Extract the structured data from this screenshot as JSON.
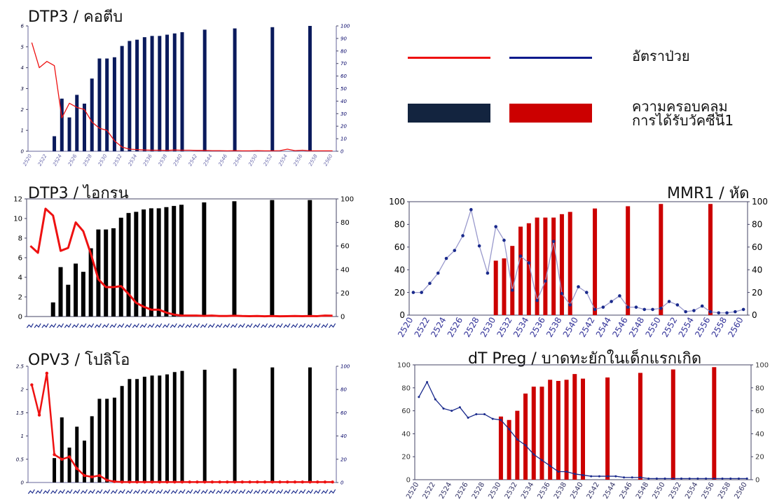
{
  "legend": {
    "incidence_label": "อัตราป่วย",
    "coverage_label_1": "ความครอบคลุม",
    "coverage_label_2": "การได้รับวัคซีนี1",
    "colors": {
      "red_line": "#ee1111",
      "blue_line": "#0a1a8c",
      "navy_bar": "#13243f",
      "red_bar": "#cc0000"
    }
  },
  "chart_data": [
    {
      "id": "dtp3-diphtheria",
      "type": "bar",
      "title": "DTP3 / คอตีบ",
      "x": [
        "2520",
        "2521",
        "2522",
        "2523",
        "2524",
        "2525",
        "2526",
        "2527",
        "2528",
        "2529",
        "2530",
        "2531",
        "2532",
        "2533",
        "2534",
        "2535",
        "2536",
        "2537",
        "2538",
        "2539",
        "2540",
        "2541",
        "2542",
        "2543",
        "2544",
        "2545",
        "2546",
        "2547",
        "2548",
        "2549",
        "2550",
        "2551",
        "2552",
        "2553",
        "2554",
        "2555",
        "2556",
        "2557",
        "2558",
        "2559",
        "2560"
      ],
      "x_tick_labels": [
        "2520",
        "2522",
        "2524",
        "2526",
        "2528",
        "2530",
        "2532",
        "2534",
        "2536",
        "2538",
        "2540",
        "2542",
        "2544",
        "2546",
        "2548",
        "2550",
        "2552",
        "2554",
        "2556",
        "2558",
        "2560"
      ],
      "ylim_left": [
        0,
        6
      ],
      "left_ticks": [
        "0",
        "1",
        "2",
        "3",
        "4",
        "5",
        "6"
      ],
      "ylim_right": [
        0,
        100
      ],
      "right_ticks": [
        "0",
        "10",
        "20",
        "30",
        "40",
        "50",
        "60",
        "70",
        "80",
        "90",
        "100"
      ],
      "series": [
        {
          "kind": "bar",
          "axis": "right",
          "color": "#0a1a5c",
          "values": [
            null,
            null,
            null,
            12,
            42,
            27,
            45,
            38,
            58,
            74,
            74,
            75,
            84,
            88,
            89,
            91,
            92,
            92,
            93,
            94,
            95,
            null,
            null,
            97,
            null,
            null,
            null,
            98,
            null,
            null,
            null,
            null,
            99,
            null,
            null,
            null,
            null,
            100,
            null,
            null,
            null
          ]
        },
        {
          "kind": "line",
          "axis": "left",
          "color": "#ee1111",
          "values": [
            5.2,
            4.0,
            4.3,
            4.1,
            1.6,
            2.3,
            2.1,
            2.0,
            1.4,
            1.1,
            1.0,
            0.5,
            0.2,
            0.1,
            0.08,
            0.06,
            0.05,
            0.05,
            0.04,
            0.06,
            0.05,
            0.05,
            0.04,
            0.04,
            0.03,
            0.03,
            0.02,
            0.03,
            0.02,
            0.02,
            0.03,
            0.02,
            0.02,
            0.03,
            0.1,
            0.03,
            0.05,
            0.02,
            0.02,
            0.02,
            0.02
          ]
        }
      ]
    },
    {
      "id": "dtp3-pertussis",
      "type": "bar",
      "title": "DTP3 / ไอกรน",
      "x": [
        "2520",
        "2521",
        "2522",
        "2523",
        "2524",
        "2525",
        "2526",
        "2527",
        "2528",
        "2529",
        "2530",
        "2531",
        "2532",
        "2533",
        "2534",
        "2535",
        "2536",
        "2537",
        "2538",
        "2539",
        "2540",
        "2541",
        "2542",
        "2543",
        "2544",
        "2545",
        "2546",
        "2547",
        "2548",
        "2549",
        "2550",
        "2551",
        "2552",
        "2553",
        "2554",
        "2555",
        "2556",
        "2557",
        "2558",
        "2559",
        "2560"
      ],
      "ylim_left": [
        0,
        12
      ],
      "left_ticks": [
        "0",
        "2",
        "4",
        "6",
        "8",
        "10",
        "12"
      ],
      "ylim_right": [
        0,
        100
      ],
      "right_ticks": [
        "0",
        "20",
        "40",
        "60",
        "80",
        "100"
      ],
      "series": [
        {
          "kind": "bar",
          "axis": "right",
          "color": "#000000",
          "values": [
            null,
            null,
            null,
            12,
            42,
            27,
            45,
            38,
            58,
            74,
            74,
            75,
            84,
            88,
            89,
            91,
            92,
            92,
            93,
            94,
            95,
            null,
            null,
            97,
            null,
            null,
            null,
            98,
            null,
            null,
            null,
            null,
            99,
            null,
            null,
            null,
            null,
            99,
            null,
            null,
            null
          ]
        },
        {
          "kind": "line",
          "axis": "left",
          "color": "#ee1111",
          "values": [
            7.2,
            6.5,
            11.0,
            10.3,
            6.7,
            7.0,
            9.6,
            8.7,
            6.4,
            3.8,
            3.0,
            3.0,
            3.1,
            2.3,
            1.4,
            1.0,
            0.7,
            0.7,
            0.4,
            0.2,
            0.1,
            0.1,
            0.1,
            0.06,
            0.1,
            0.05,
            0.05,
            0.08,
            0.05,
            0.04,
            0.05,
            0.03,
            0.05,
            0.03,
            0.04,
            0.05,
            0.04,
            0.05,
            0.04,
            0.1,
            0.08
          ]
        }
      ]
    },
    {
      "id": "mmr1-measles",
      "type": "bar",
      "title": "MMR1 / หัด",
      "x": [
        "2520",
        "2521",
        "2522",
        "2523",
        "2524",
        "2525",
        "2526",
        "2527",
        "2528",
        "2529",
        "2530",
        "2531",
        "2532",
        "2533",
        "2534",
        "2535",
        "2536",
        "2537",
        "2538",
        "2539",
        "2540",
        "2541",
        "2542",
        "2543",
        "2544",
        "2545",
        "2546",
        "2547",
        "2548",
        "2549",
        "2550",
        "2551",
        "2552",
        "2553",
        "2554",
        "2555",
        "2556",
        "2557",
        "2558",
        "2559",
        "2560"
      ],
      "x_tick_labels": [
        "2520",
        "2522",
        "2524",
        "2526",
        "2528",
        "2530",
        "2532",
        "2534",
        "2536",
        "2538",
        "2540",
        "2542",
        "2544",
        "2546",
        "2548",
        "2550",
        "2552",
        "2554",
        "2556",
        "2558",
        "2560"
      ],
      "ylim_left": [
        0,
        100
      ],
      "left_ticks": [
        "0",
        "20",
        "40",
        "60",
        "80",
        "100"
      ],
      "ylim_right": [
        0,
        100
      ],
      "right_ticks": [
        "0",
        "20",
        "40",
        "60",
        "80",
        "100"
      ],
      "series": [
        {
          "kind": "bar",
          "axis": "left",
          "color": "#cc0000",
          "values": [
            null,
            null,
            null,
            null,
            null,
            null,
            null,
            null,
            null,
            null,
            48,
            50,
            61,
            78,
            81,
            86,
            86,
            86,
            89,
            91,
            null,
            null,
            94,
            null,
            null,
            null,
            96,
            null,
            null,
            null,
            98,
            null,
            null,
            null,
            null,
            null,
            98,
            null,
            null,
            null,
            null
          ]
        },
        {
          "kind": "line",
          "axis": "right",
          "color": "#9999cc",
          "values": [
            20,
            20,
            28,
            37,
            50,
            57,
            70,
            93,
            61,
            37,
            78,
            66,
            22,
            52,
            46,
            13,
            30,
            65,
            19,
            9,
            25,
            20,
            5,
            7,
            12,
            17,
            7,
            7,
            5,
            5,
            6,
            12,
            9,
            3,
            4,
            8,
            3,
            2,
            2,
            3,
            5
          ]
        }
      ]
    },
    {
      "id": "opv3-polio",
      "type": "bar",
      "title": "OPV3 / โปลิโอ",
      "x": [
        "2520",
        "2521",
        "2522",
        "2523",
        "2524",
        "2525",
        "2526",
        "2527",
        "2528",
        "2529",
        "2530",
        "2531",
        "2532",
        "2533",
        "2534",
        "2535",
        "2536",
        "2537",
        "2538",
        "2539",
        "2540",
        "2541",
        "2542",
        "2543",
        "2544",
        "2545",
        "2546",
        "2547",
        "2548",
        "2549",
        "2550",
        "2551",
        "2552",
        "2553",
        "2554",
        "2555",
        "2556",
        "2557",
        "2558",
        "2559",
        "2560"
      ],
      "ylim_left": [
        0,
        2.5
      ],
      "left_ticks": [
        "0",
        "0.5",
        "1",
        "1.5",
        "2",
        "2.5"
      ],
      "ylim_right": [
        0,
        100
      ],
      "right_ticks": [
        "0",
        "20",
        "40",
        "60",
        "80",
        "100"
      ],
      "series": [
        {
          "kind": "bar",
          "axis": "right",
          "color": "#000000",
          "values": [
            null,
            null,
            null,
            21,
            56,
            30,
            48,
            36,
            57,
            72,
            72,
            73,
            83,
            89,
            89,
            91,
            92,
            92,
            93,
            95,
            96,
            null,
            null,
            97,
            null,
            null,
            null,
            98,
            null,
            null,
            null,
            null,
            99,
            null,
            null,
            null,
            null,
            99,
            null,
            null,
            null
          ]
        },
        {
          "kind": "line",
          "axis": "left",
          "color": "#ee1111",
          "values": [
            2.1,
            1.45,
            2.35,
            0.6,
            0.5,
            0.55,
            0.3,
            0.15,
            0.12,
            0.15,
            0.05,
            0.02,
            0.01,
            0.01,
            0.01,
            0.01,
            0.01,
            0.01,
            0.01,
            0.01,
            0.01,
            0.01,
            0.01,
            0.01,
            0.01,
            0.01,
            0.01,
            0.01,
            0.01,
            0.01,
            0.01,
            0.01,
            0.01,
            0.01,
            0.01,
            0.01,
            0.01,
            0.01,
            0.01,
            0.01,
            0.01
          ]
        }
      ]
    },
    {
      "id": "dt-preg-neonatal-tetanus",
      "type": "bar",
      "title": "dT Preg / บาดทะยักในเด็กแรกเกิด",
      "x": [
        "2520",
        "2521",
        "2522",
        "2523",
        "2524",
        "2525",
        "2526",
        "2527",
        "2528",
        "2529",
        "2530",
        "2531",
        "2532",
        "2533",
        "2534",
        "2535",
        "2536",
        "2537",
        "2538",
        "2539",
        "2540",
        "2541",
        "2542",
        "2543",
        "2544",
        "2545",
        "2546",
        "2547",
        "2548",
        "2549",
        "2550",
        "2551",
        "2552",
        "2553",
        "2554",
        "2555",
        "2556",
        "2557",
        "2558",
        "2559",
        "2560"
      ],
      "x_tick_labels": [
        "2520",
        "2522",
        "2524",
        "2526",
        "2528",
        "2530",
        "2532",
        "2534",
        "2536",
        "2538",
        "2540",
        "2542",
        "2544",
        "2546",
        "2548",
        "2550",
        "2552",
        "2554",
        "2556",
        "2558",
        "2560"
      ],
      "ylim_left": [
        0,
        100
      ],
      "left_ticks": [
        "0",
        "20",
        "40",
        "60",
        "80",
        "100"
      ],
      "ylim_right": [
        0,
        100
      ],
      "right_ticks": [
        "0",
        "20",
        "40",
        "60",
        "80",
        "100"
      ],
      "series": [
        {
          "kind": "bar",
          "axis": "left",
          "color": "#cc0000",
          "values": [
            null,
            null,
            null,
            null,
            null,
            null,
            null,
            null,
            null,
            null,
            55,
            52,
            60,
            75,
            81,
            81,
            87,
            86,
            87,
            92,
            88,
            null,
            null,
            89,
            null,
            null,
            null,
            93,
            null,
            null,
            null,
            96,
            null,
            null,
            null,
            null,
            98,
            null,
            null,
            null,
            null
          ]
        },
        {
          "kind": "line",
          "axis": "right",
          "color": "#1a2a8c",
          "values": [
            72,
            85,
            70,
            62,
            60,
            63,
            54,
            57,
            57,
            53,
            52,
            44,
            35,
            30,
            22,
            17,
            12,
            7,
            7,
            5,
            4,
            3,
            3,
            3,
            3,
            2,
            2,
            2,
            1,
            1,
            1,
            1,
            1,
            1,
            1,
            1,
            1,
            1,
            1,
            1,
            1
          ]
        }
      ]
    }
  ]
}
